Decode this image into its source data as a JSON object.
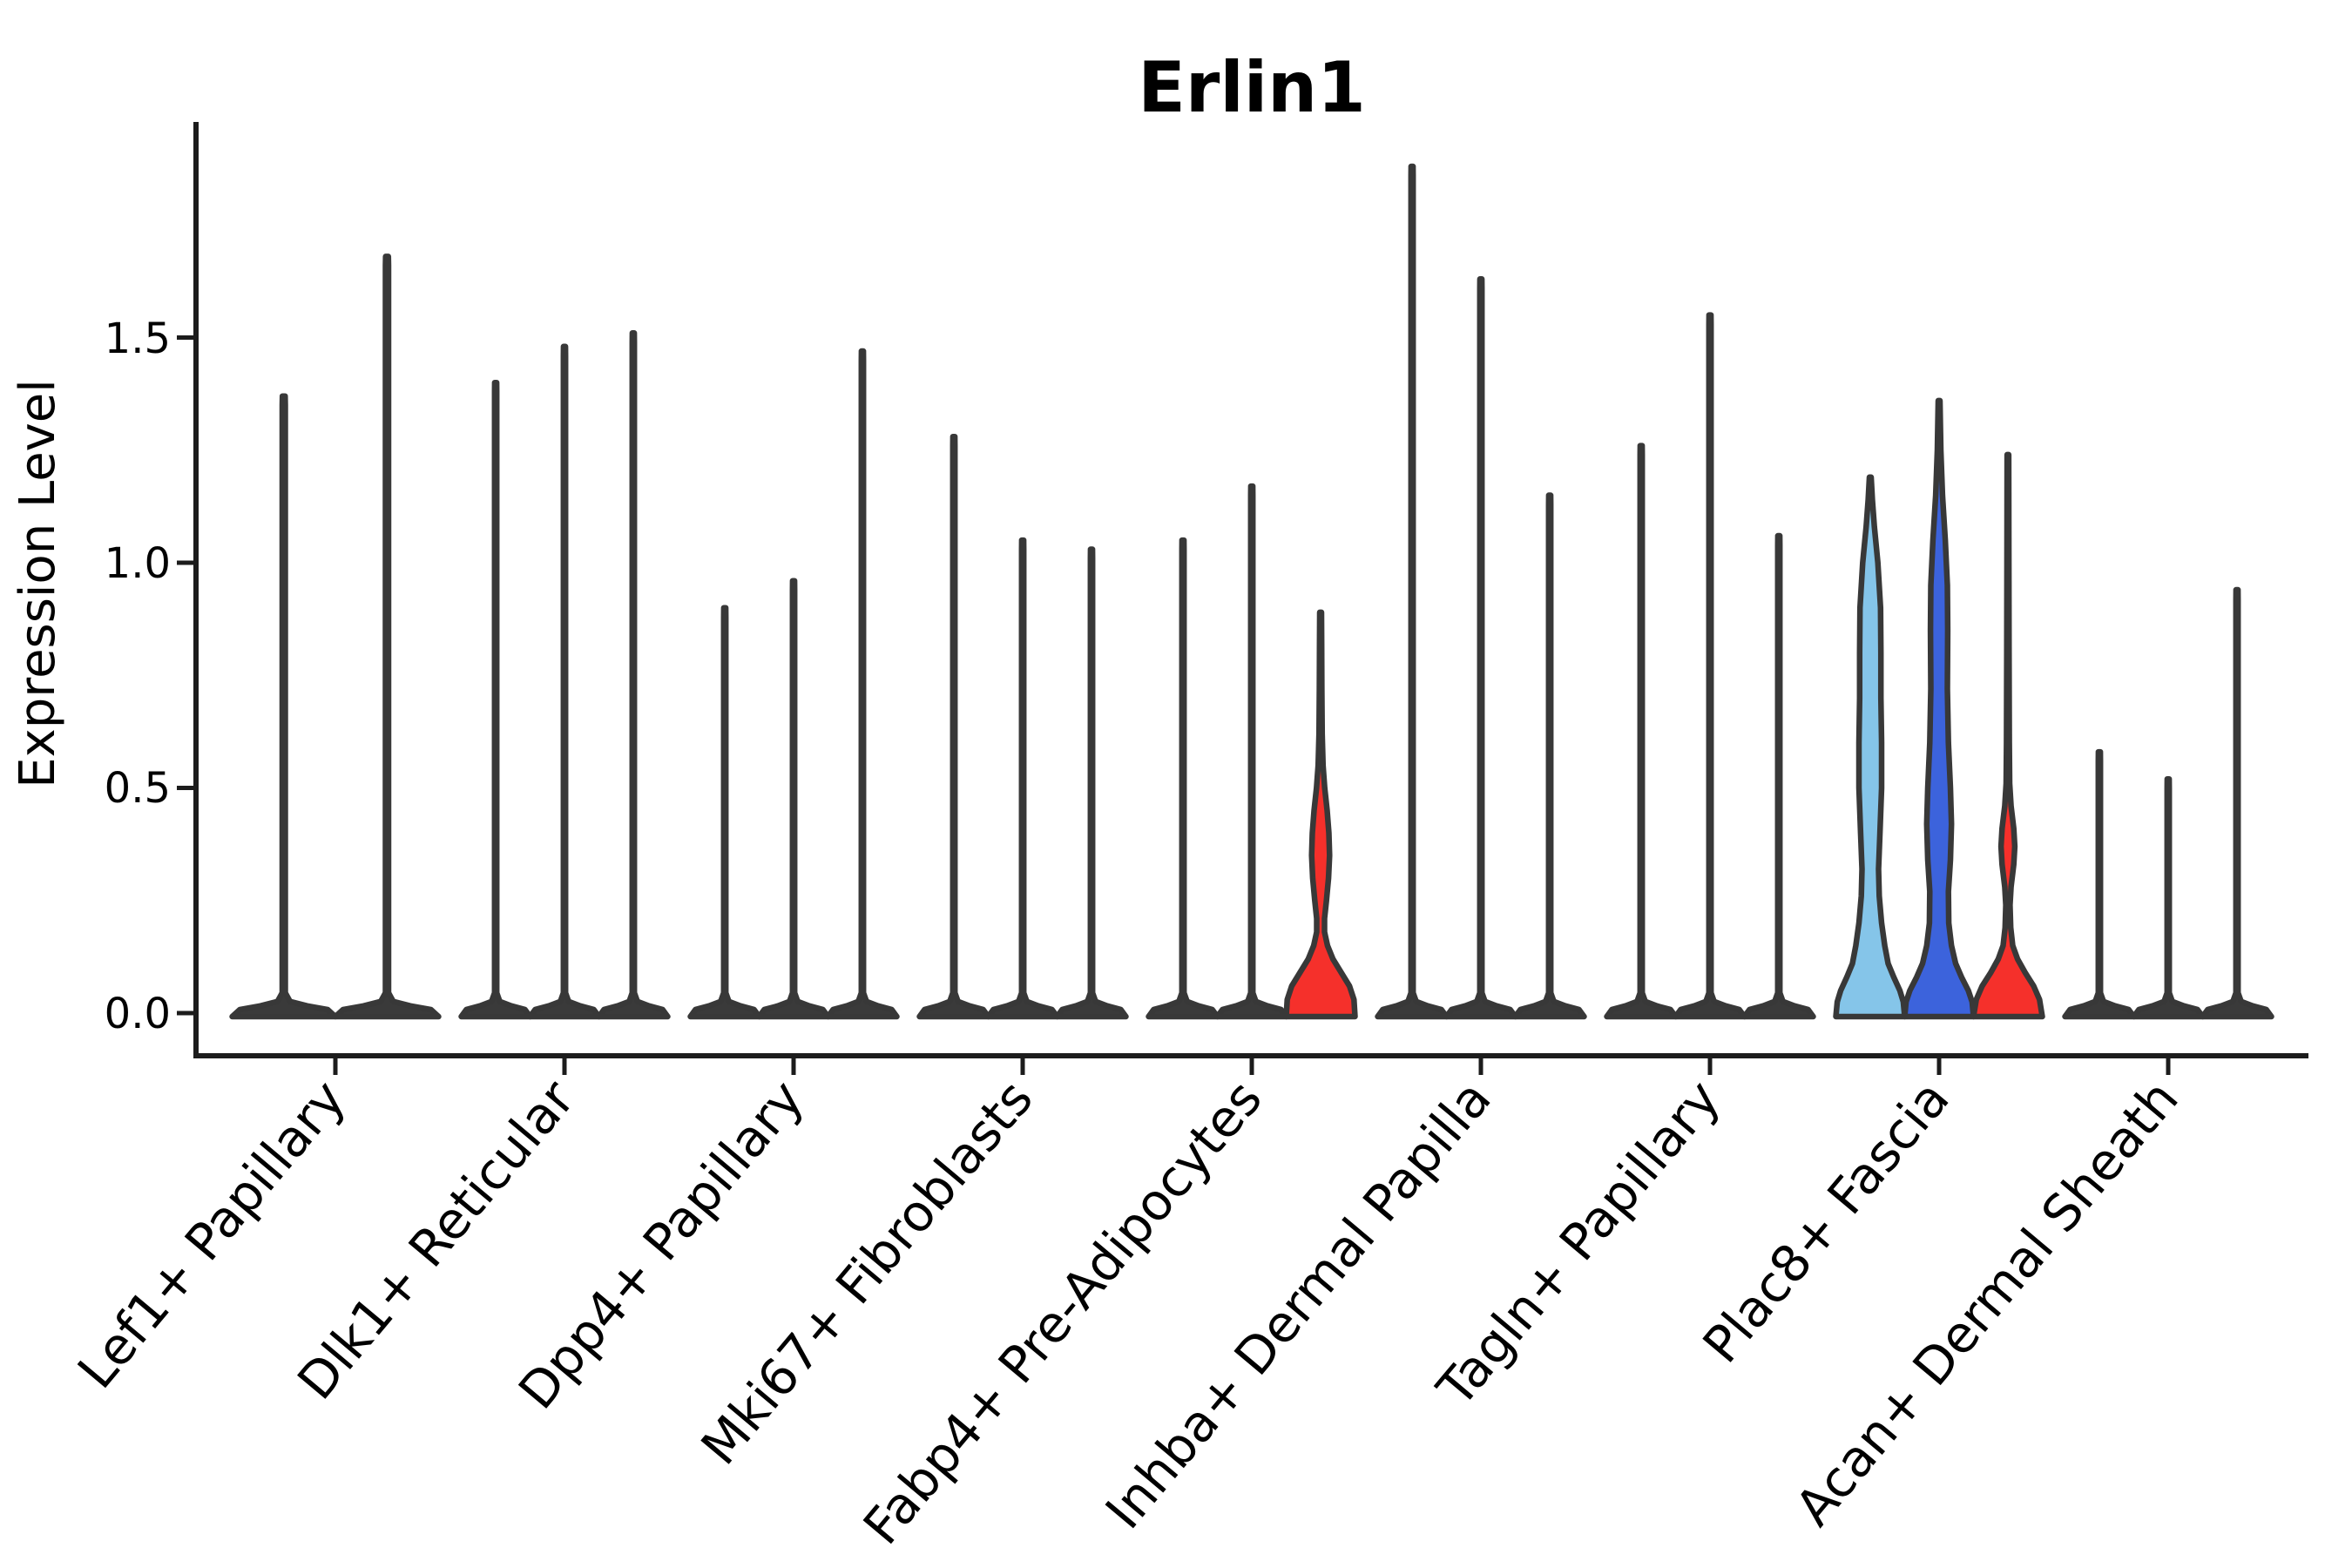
{
  "chart_data": {
    "type": "violin",
    "title": "Erlin1",
    "ylabel": "Expression Level",
    "xlabel": "",
    "legend": "none",
    "grid": false,
    "ylim": [
      0,
      1.98
    ],
    "y_axis": {
      "ticks": [
        {
          "label": "0.0",
          "value": 0.0
        },
        {
          "label": "0.5",
          "value": 0.5
        },
        {
          "label": "1.0",
          "value": 1.0
        },
        {
          "label": "1.5",
          "value": 1.5
        }
      ]
    },
    "categories": [
      "Lef1+ Papillary",
      "Dlk1+ Reticular",
      "Dpp4+ Papillary",
      "Mki67+ Fibroblasts",
      "Fabp4+ Pre-Adipocytes",
      "Inhba+ Dermal Papilla",
      "Tagln+ Papillary",
      "Plac8+ Fascia",
      "Acan+ Dermal Sheath"
    ],
    "colors": {
      "plain_violin": "#3a3a3a",
      "outline": "#383838",
      "axis": "#1c1c1c",
      "highlight_light_blue": "#85C5E9",
      "highlight_blue": "#3C63DC",
      "highlight_red": "#F5302B"
    },
    "groups": [
      {
        "category": "Lef1+ Papillary",
        "violins": [
          {
            "max": 1.37
          },
          {
            "max": 1.68
          }
        ]
      },
      {
        "category": "Dlk1+ Reticular",
        "violins": [
          {
            "max": 1.4
          },
          {
            "max": 1.48
          },
          {
            "max": 1.51
          }
        ]
      },
      {
        "category": "Dpp4+ Papillary",
        "violins": [
          {
            "max": 0.9
          },
          {
            "max": 0.96
          },
          {
            "max": 1.47
          }
        ]
      },
      {
        "category": "Mki67+ Fibroblasts",
        "violins": [
          {
            "max": 1.28
          },
          {
            "max": 1.05
          },
          {
            "max": 1.03
          }
        ]
      },
      {
        "category": "Fabp4+ Pre-Adipocytes",
        "violins": [
          {
            "max": 1.05
          },
          {
            "max": 1.17
          },
          {
            "max": 0.89,
            "fill": "#F5302B",
            "profile_key": "fabp4_red"
          }
        ]
      },
      {
        "category": "Inhba+ Dermal Papilla",
        "violins": [
          {
            "max": 1.88
          },
          {
            "max": 1.63
          },
          {
            "max": 1.15
          }
        ]
      },
      {
        "category": "Tagln+ Papillary",
        "violins": [
          {
            "max": 1.26
          },
          {
            "max": 1.55
          },
          {
            "max": 1.06
          }
        ]
      },
      {
        "category": "Plac8+ Fascia",
        "violins": [
          {
            "max": 1.19,
            "fill": "#85C5E9",
            "profile_key": "plac8_lightblue"
          },
          {
            "max": 1.36,
            "fill": "#3C63DC",
            "profile_key": "plac8_blue"
          },
          {
            "max": 1.24,
            "fill": "#F5302B",
            "profile_key": "plac8_red"
          }
        ]
      },
      {
        "category": "Acan+ Dermal Sheath",
        "violins": [
          {
            "max": 0.58
          },
          {
            "max": 0.52
          },
          {
            "max": 0.94
          }
        ]
      }
    ],
    "profiles": {
      "fabp4_red": [
        [
          0,
          1.0
        ],
        [
          0.03,
          0.97
        ],
        [
          0.06,
          0.84
        ],
        [
          0.09,
          0.6
        ],
        [
          0.12,
          0.36
        ],
        [
          0.15,
          0.2
        ],
        [
          0.18,
          0.115
        ],
        [
          0.21,
          0.115
        ],
        [
          0.25,
          0.17
        ],
        [
          0.3,
          0.23
        ],
        [
          0.35,
          0.26
        ],
        [
          0.4,
          0.24
        ],
        [
          0.45,
          0.19
        ],
        [
          0.5,
          0.12
        ],
        [
          0.55,
          0.07
        ],
        [
          0.62,
          0.045
        ],
        [
          0.72,
          0.035
        ],
        [
          0.82,
          0.03
        ],
        [
          0.89,
          0.025
        ]
      ],
      "plac8_lightblue": [
        [
          0,
          1.0
        ],
        [
          0.025,
          0.96
        ],
        [
          0.05,
          0.86
        ],
        [
          0.08,
          0.68
        ],
        [
          0.11,
          0.52
        ],
        [
          0.15,
          0.42
        ],
        [
          0.2,
          0.33
        ],
        [
          0.26,
          0.26
        ],
        [
          0.32,
          0.24
        ],
        [
          0.4,
          0.28
        ],
        [
          0.5,
          0.33
        ],
        [
          0.6,
          0.33
        ],
        [
          0.7,
          0.31
        ],
        [
          0.8,
          0.31
        ],
        [
          0.9,
          0.3
        ],
        [
          1.0,
          0.22
        ],
        [
          1.08,
          0.12
        ],
        [
          1.14,
          0.06
        ],
        [
          1.19,
          0.025
        ]
      ],
      "plac8_blue": [
        [
          0,
          1.0
        ],
        [
          0.025,
          0.96
        ],
        [
          0.05,
          0.85
        ],
        [
          0.08,
          0.65
        ],
        [
          0.11,
          0.48
        ],
        [
          0.15,
          0.36
        ],
        [
          0.2,
          0.28
        ],
        [
          0.27,
          0.27
        ],
        [
          0.34,
          0.33
        ],
        [
          0.42,
          0.36
        ],
        [
          0.5,
          0.33
        ],
        [
          0.6,
          0.27
        ],
        [
          0.72,
          0.24
        ],
        [
          0.85,
          0.25
        ],
        [
          0.95,
          0.24
        ],
        [
          1.05,
          0.18
        ],
        [
          1.15,
          0.1
        ],
        [
          1.25,
          0.05
        ],
        [
          1.36,
          0.025
        ]
      ],
      "plac8_red": [
        [
          0,
          1.0
        ],
        [
          0.03,
          0.92
        ],
        [
          0.06,
          0.75
        ],
        [
          0.09,
          0.5
        ],
        [
          0.12,
          0.28
        ],
        [
          0.15,
          0.14
        ],
        [
          0.19,
          0.08
        ],
        [
          0.24,
          0.06
        ],
        [
          0.28,
          0.09
        ],
        [
          0.33,
          0.17
        ],
        [
          0.37,
          0.2
        ],
        [
          0.41,
          0.17
        ],
        [
          0.46,
          0.09
        ],
        [
          0.51,
          0.05
        ],
        [
          0.6,
          0.04
        ],
        [
          0.8,
          0.032
        ],
        [
          1.0,
          0.028
        ],
        [
          1.12,
          0.025
        ],
        [
          1.24,
          0.022
        ]
      ]
    }
  }
}
